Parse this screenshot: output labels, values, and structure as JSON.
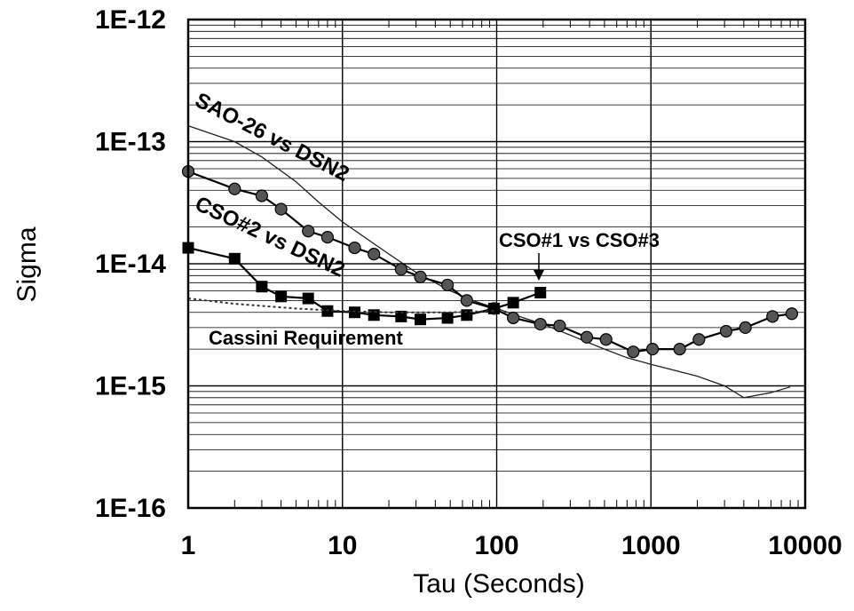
{
  "chart_data": {
    "type": "line",
    "xlabel": "Tau (Seconds)",
    "ylabel": "Sigma",
    "x_scale": "log",
    "y_scale": "log",
    "xlim": [
      1,
      10000
    ],
    "ylim": [
      1e-16,
      1e-12
    ],
    "x_ticks": [
      "1",
      "10",
      "100",
      "1000",
      "10000"
    ],
    "y_ticks": [
      "1E-16",
      "1E-15",
      "1E-14",
      "1E-13",
      "1E-12"
    ],
    "grid": true,
    "annotations": [
      {
        "text": "SAO-26 vs DSN2",
        "series": "SAO-26 vs DSN2"
      },
      {
        "text": "CSO#2 vs DSN2",
        "series": "CSO#2 vs DSN2"
      },
      {
        "text": "CSO#1 vs CSO#3",
        "series": "CSO#1 vs CSO#3"
      },
      {
        "text": "Cassini Requirement",
        "series": "Cassini Requirement"
      }
    ],
    "series": [
      {
        "name": "SAO-26 vs DSN2",
        "marker": "none",
        "style": "solid",
        "x": [
          1,
          2,
          3,
          5,
          7,
          10,
          20,
          30,
          50,
          70,
          100,
          150,
          200,
          300,
          500,
          700,
          1000,
          2000,
          3000,
          4000,
          6000,
          8000
        ],
        "y": [
          1.35e-13,
          1e-13,
          7.5e-14,
          4.7e-14,
          3.2e-14,
          2.2e-14,
          1.2e-14,
          8.5e-15,
          6e-15,
          5e-15,
          4.3e-15,
          3.6e-15,
          3.2e-15,
          2.6e-15,
          2e-15,
          1.7e-15,
          1.5e-15,
          1.2e-15,
          1e-15,
          8e-16,
          8.8e-16,
          9.8e-16
        ]
      },
      {
        "name": "CSO#2 vs DSN2",
        "marker": "circle",
        "style": "solid",
        "x": [
          1,
          2,
          3,
          4,
          6,
          8,
          12,
          16,
          24,
          32,
          48,
          64,
          96,
          128,
          192,
          256,
          384,
          512,
          768,
          1024,
          1536,
          2048,
          3072,
          4096,
          6144,
          8192
        ],
        "y": [
          5.7e-14,
          4.1e-14,
          3.6e-14,
          2.8e-14,
          1.85e-14,
          1.65e-14,
          1.35e-14,
          1.2e-14,
          9e-15,
          7.8e-15,
          6.7e-15,
          5e-15,
          4.3e-15,
          3.6e-15,
          3.2e-15,
          3.1e-15,
          2.5e-15,
          2.4e-15,
          1.9e-15,
          2e-15,
          2e-15,
          2.4e-15,
          2.8e-15,
          3e-15,
          3.7e-15,
          3.9e-15
        ]
      },
      {
        "name": "CSO#1 vs CSO#3",
        "marker": "square",
        "style": "solid",
        "x": [
          1,
          2,
          3,
          4,
          6,
          8,
          12,
          16,
          24,
          32,
          48,
          64,
          96,
          128,
          192
        ],
        "y": [
          1.35e-14,
          1.1e-14,
          6.5e-15,
          5.4e-15,
          5.2e-15,
          4.1e-15,
          4e-15,
          3.8e-15,
          3.7e-15,
          3.5e-15,
          3.6e-15,
          3.8e-15,
          4.3e-15,
          4.8e-15,
          5.8e-15
        ]
      },
      {
        "name": "Cassini Requirement",
        "marker": "none",
        "style": "dotted",
        "x": [
          1,
          2,
          5,
          10,
          20,
          50,
          100
        ],
        "y": [
          5.2e-15,
          4.7e-15,
          4.3e-15,
          4.1e-15,
          4e-15,
          4e-15,
          4.1e-15
        ]
      }
    ]
  }
}
